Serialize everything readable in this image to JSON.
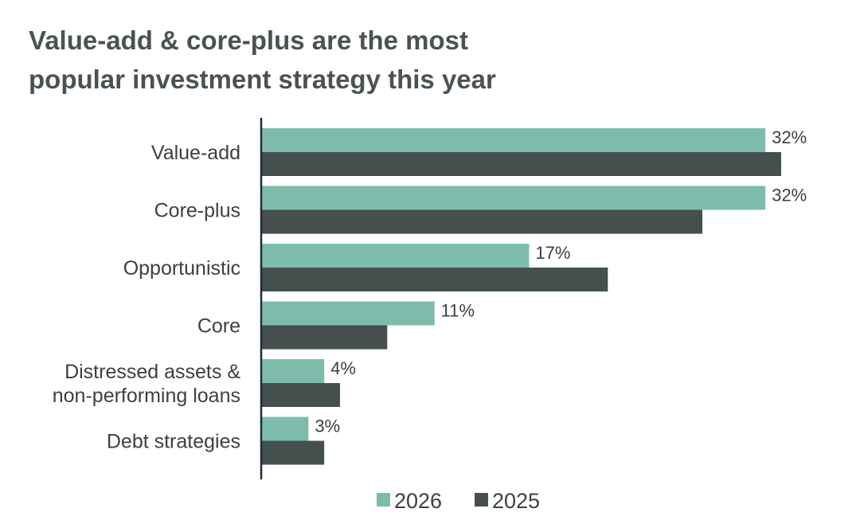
{
  "chart_data": {
    "type": "bar",
    "orientation": "horizontal",
    "title_lines": [
      "Value-add & core-plus are the most",
      "popular investment strategy this year"
    ],
    "categories": [
      [
        "Value-add"
      ],
      [
        "Core-plus"
      ],
      [
        "Opportunistic"
      ],
      [
        "Core"
      ],
      [
        "Distressed assets &",
        "non-performing loans"
      ],
      [
        "Debt strategies"
      ]
    ],
    "series": [
      {
        "name": "2026",
        "color": "#7dbcab",
        "values": [
          32,
          32,
          17,
          11,
          4,
          3
        ],
        "labels": [
          "32%",
          "32%",
          "17%",
          "11%",
          "4%",
          "3%"
        ]
      },
      {
        "name": "2025",
        "color": "#444f4e",
        "values": [
          33,
          28,
          22,
          8,
          5,
          4
        ]
      }
    ],
    "xlim": [
      0,
      33
    ],
    "legend_position": "bottom",
    "axis_color": "#1f2a4a"
  }
}
